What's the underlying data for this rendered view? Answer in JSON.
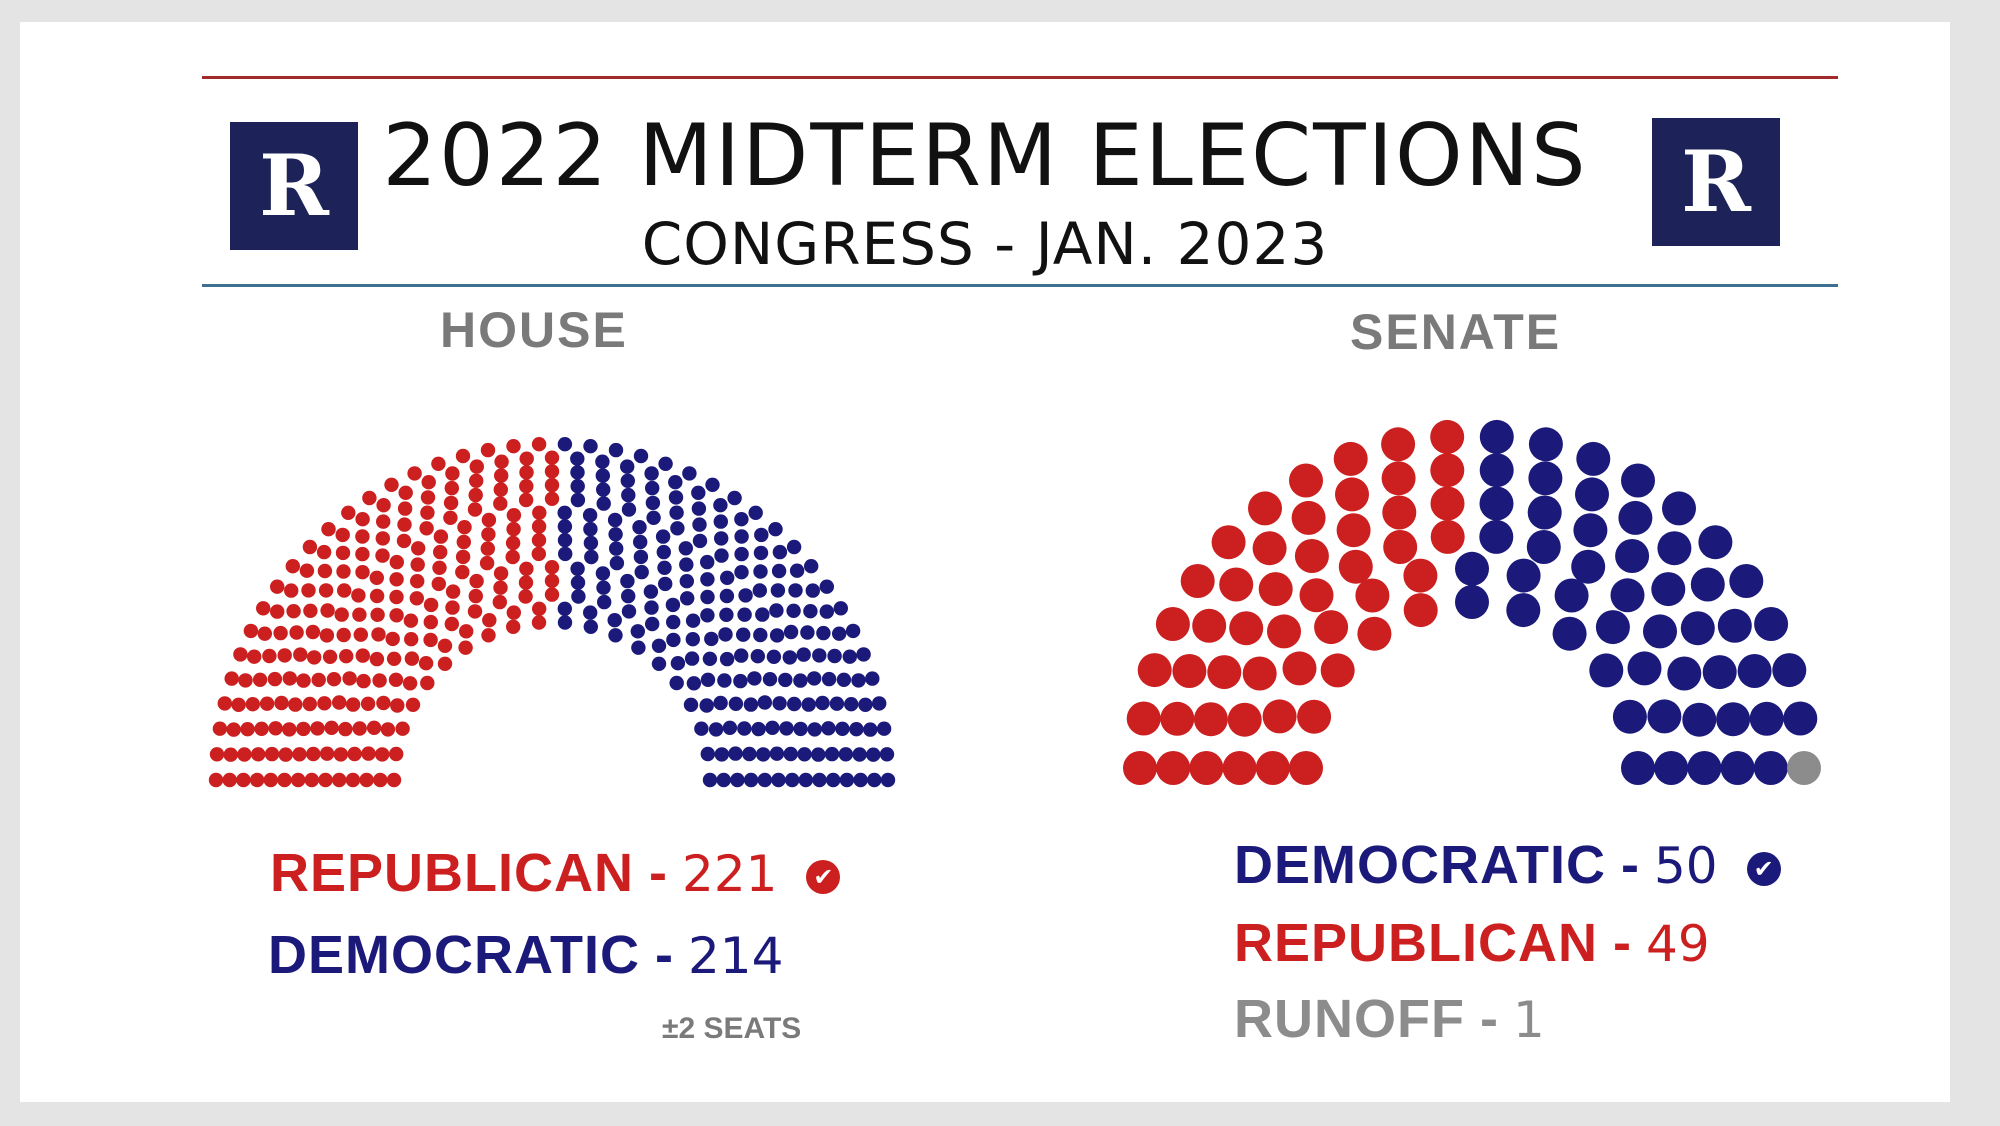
{
  "header": {
    "title": "2022 MIDTERM ELECTIONS",
    "subtitle": "CONGRESS - JAN. 2023",
    "logo_letter": "R"
  },
  "colors": {
    "republican": "#cc1f1f",
    "democratic": "#1b1a7a",
    "runoff": "#8c8c8c",
    "logo_bg": "#1d2358"
  },
  "chart_data": [
    {
      "type": "hemicycle",
      "title": "HOUSE",
      "series": [
        {
          "name": "REPUBLICAN",
          "value": 221,
          "color": "#cc1f1f",
          "winner": true
        },
        {
          "name": "DEMOCRATIC",
          "value": 214,
          "color": "#1b1a7a",
          "winner": false
        }
      ],
      "note": "±2 SEATS"
    },
    {
      "type": "hemicycle",
      "title": "SENATE",
      "series": [
        {
          "name": "REPUBLICAN",
          "value": 49,
          "color": "#cc1f1f",
          "winner": false
        },
        {
          "name": "DEMOCRATIC",
          "value": 50,
          "color": "#1b1a7a",
          "winner": true
        },
        {
          "name": "RUNOFF",
          "value": 1,
          "color": "#8c8c8c",
          "winner": false
        }
      ],
      "legend_order": [
        "DEMOCRATIC",
        "REPUBLICAN",
        "RUNOFF"
      ]
    }
  ],
  "legend": {
    "house": [
      {
        "name": "REPUBLICAN",
        "dash": "-",
        "value": "221",
        "check": "✔"
      },
      {
        "name": "DEMOCRATIC",
        "dash": "-",
        "value": "214"
      }
    ],
    "senate": [
      {
        "name": "DEMOCRATIC",
        "dash": "-",
        "value": "50",
        "check": "✔"
      },
      {
        "name": "REPUBLICAN",
        "dash": "-",
        "value": "49"
      },
      {
        "name": "RUNOFF",
        "dash": "-",
        "value": "1"
      }
    ]
  }
}
